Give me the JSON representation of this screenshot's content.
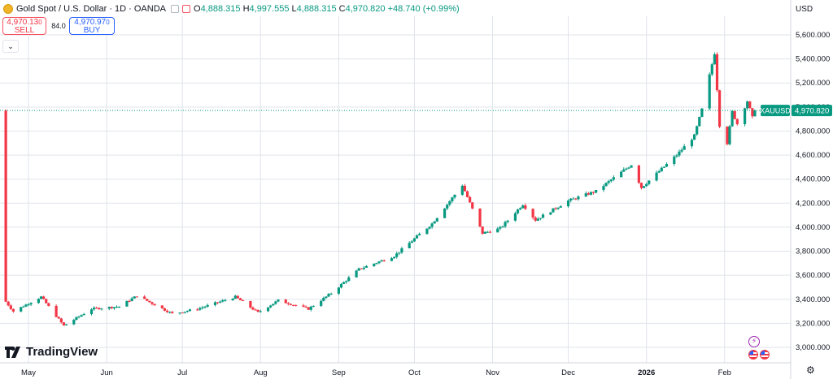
{
  "header": {
    "symbol": "Gold Spot / U.S. Dollar · 1D · OANDA",
    "o_label": "O",
    "o": "4,888.315",
    "h_label": "H",
    "h": "4,997.555",
    "l_label": "L",
    "l": "4,888.315",
    "c_label": "C",
    "c": "4,970.820",
    "change": "+48.740 (+0.99%)"
  },
  "trade": {
    "sell_price": "4,970.13",
    "sell_price_sup": "0",
    "sell_label": "SELL",
    "spread": "84.0",
    "buy_price": "4,970.97",
    "buy_price_sup": "0",
    "buy_label": "BUY"
  },
  "currency": "USD",
  "brand": "TradingView",
  "colors": {
    "up": "#089981",
    "down": "#f23645",
    "grid": "#e0e3eb",
    "accent": "#2962ff"
  },
  "chart_data": {
    "type": "candlestick",
    "title": "Gold Spot / U.S. Dollar · 1D · OANDA",
    "ylim": [
      2900,
      5700
    ],
    "y_ticks": [
      3000,
      3200,
      3400,
      3600,
      3800,
      4000,
      4200,
      4400,
      4600,
      4800,
      5000,
      5200,
      5400,
      5600
    ],
    "y_tick_labels": [
      "3,000.000",
      "3,200.000",
      "3,400.000",
      "3,600.000",
      "3,800.000",
      "4,000.000",
      "4,200.000",
      "4,400.000",
      "4,600.000",
      "4,800.000",
      "5,000.000",
      "5,200.000",
      "5,400.000",
      "5,600.000"
    ],
    "x_ticks": [
      "May",
      "Jun",
      "Jul",
      "Aug",
      "Sep",
      "Oct",
      "Nov",
      "Dec",
      "2026",
      "Feb"
    ],
    "last_price_label": "XAUUSD",
    "last_price": "4,970.820",
    "last_value": 4970.82,
    "grid": true,
    "anchors": [
      [
        "2025-04-22",
        3380
      ],
      [
        "2025-04-25",
        3300
      ],
      [
        "2025-05-06",
        3420
      ],
      [
        "2025-05-15",
        3180
      ],
      [
        "2025-05-26",
        3320
      ],
      [
        "2025-06-06",
        3340
      ],
      [
        "2025-06-13",
        3430
      ],
      [
        "2025-06-27",
        3280
      ],
      [
        "2025-07-07",
        3320
      ],
      [
        "2025-07-22",
        3420
      ],
      [
        "2025-07-31",
        3290
      ],
      [
        "2025-08-08",
        3390
      ],
      [
        "2025-08-20",
        3320
      ],
      [
        "2025-08-29",
        3450
      ],
      [
        "2025-09-09",
        3650
      ],
      [
        "2025-09-23",
        3760
      ],
      [
        "2025-10-08",
        4030
      ],
      [
        "2025-10-20",
        4350
      ],
      [
        "2025-10-28",
        3950
      ],
      [
        "2025-11-04",
        3990
      ],
      [
        "2025-11-13",
        4190
      ],
      [
        "2025-11-18",
        4060
      ],
      [
        "2025-12-01",
        4220
      ],
      [
        "2025-12-12",
        4300
      ],
      [
        "2025-12-26",
        4520
      ],
      [
        "2025-12-30",
        4330
      ],
      [
        "2026-01-13",
        4600
      ],
      [
        "2026-01-20",
        4760
      ],
      [
        "2026-01-23",
        4980
      ],
      [
        "2026-01-28",
        5450
      ],
      [
        "2026-01-30",
        4850
      ],
      [
        "2026-02-02",
        4700
      ],
      [
        "2026-02-04",
        4960
      ],
      [
        "2026-02-06",
        4860
      ],
      [
        "2026-02-10",
        5050
      ],
      [
        "2026-02-12",
        4910
      ],
      [
        "2026-02-13",
        4970
      ]
    ]
  }
}
